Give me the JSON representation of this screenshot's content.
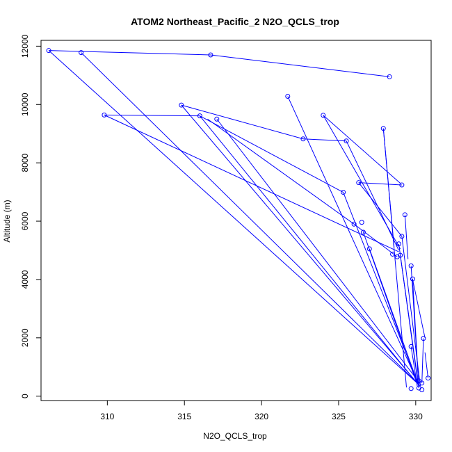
{
  "chart_data": {
    "type": "line",
    "title": "ATOM2 Northeast_Pacific_2 N2O_QCLS_trop",
    "xlabel": "N2O_QCLS_trop",
    "ylabel": "Altitude (m)",
    "xlim": [
      305.7,
      331.0
    ],
    "ylim": [
      -150,
      12200
    ],
    "x_ticks": [
      310,
      315,
      320,
      325,
      330
    ],
    "y_ticks": [
      0,
      2000,
      4000,
      6000,
      8000,
      10000,
      12000
    ],
    "grid": false,
    "line_color": "#0000ff",
    "marker": "open-circle",
    "points": [
      {
        "x": 306.2,
        "y": 11850
      },
      {
        "x": 308.3,
        "y": 11780
      },
      {
        "x": 316.7,
        "y": 11700
      },
      {
        "x": 328.3,
        "y": 10950
      },
      {
        "x": 321.7,
        "y": 10280
      },
      {
        "x": 314.8,
        "y": 9980
      },
      {
        "x": 324.0,
        "y": 9630
      },
      {
        "x": 309.8,
        "y": 9640
      },
      {
        "x": 316.0,
        "y": 9610
      },
      {
        "x": 317.1,
        "y": 9500
      },
      {
        "x": 327.9,
        "y": 9180
      },
      {
        "x": 322.7,
        "y": 8820
      },
      {
        "x": 325.5,
        "y": 8750
      },
      {
        "x": 326.3,
        "y": 7320
      },
      {
        "x": 329.1,
        "y": 7240
      },
      {
        "x": 325.3,
        "y": 6990
      },
      {
        "x": 329.3,
        "y": 6220
      },
      {
        "x": 326.5,
        "y": 5960
      },
      {
        "x": 326.0,
        "y": 5900
      },
      {
        "x": 326.6,
        "y": 5620
      },
      {
        "x": 329.1,
        "y": 5480
      },
      {
        "x": 328.9,
        "y": 5220
      },
      {
        "x": 327.0,
        "y": 5050
      },
      {
        "x": 328.5,
        "y": 4870
      },
      {
        "x": 328.8,
        "y": 4780
      },
      {
        "x": 329.0,
        "y": 4830
      },
      {
        "x": 329.7,
        "y": 4470
      },
      {
        "x": 329.8,
        "y": 4020
      },
      {
        "x": 329.7,
        "y": 1700
      },
      {
        "x": 330.5,
        "y": 1980
      },
      {
        "x": 330.8,
        "y": 620
      },
      {
        "x": 330.2,
        "y": 520
      },
      {
        "x": 330.4,
        "y": 450
      },
      {
        "x": 329.7,
        "y": 260
      },
      {
        "x": 330.2,
        "y": 280
      },
      {
        "x": 330.4,
        "y": 220
      }
    ],
    "segments": [
      [
        306.2,
        11850,
        316.7,
        11700
      ],
      [
        316.7,
        11700,
        328.3,
        10950
      ],
      [
        306.2,
        11850,
        330.3,
        350
      ],
      [
        308.3,
        11780,
        330.2,
        400
      ],
      [
        314.8,
        9980,
        322.7,
        8820
      ],
      [
        322.7,
        8820,
        325.5,
        8750
      ],
      [
        325.5,
        8750,
        328.9,
        5000
      ],
      [
        314.8,
        9980,
        330.1,
        450
      ],
      [
        309.8,
        9640,
        316.0,
        9610
      ],
      [
        316.0,
        9610,
        325.3,
        6990
      ],
      [
        309.8,
        9640,
        328.9,
        4950
      ],
      [
        316.0,
        9610,
        330.0,
        500
      ],
      [
        317.1,
        9500,
        330.3,
        420
      ],
      [
        316.5,
        9500,
        326.0,
        5900
      ],
      [
        321.7,
        10280,
        330.2,
        400
      ],
      [
        324.0,
        9630,
        329.0,
        7300
      ],
      [
        324.0,
        9630,
        329.0,
        5050
      ],
      [
        327.9,
        9180,
        329.4,
        300
      ],
      [
        327.9,
        9180,
        328.6,
        5100
      ],
      [
        325.3,
        6990,
        330.2,
        350
      ],
      [
        326.3,
        7320,
        329.1,
        7240
      ],
      [
        326.3,
        7320,
        329.1,
        5480
      ],
      [
        326.0,
        5900,
        328.8,
        4780
      ],
      [
        326.6,
        5620,
        330.1,
        400
      ],
      [
        327.0,
        5050,
        330.2,
        350
      ],
      [
        329.3,
        6220,
        329.5,
        4700
      ],
      [
        329.1,
        5480,
        330.3,
        350
      ],
      [
        328.9,
        5220,
        330.2,
        300
      ],
      [
        329.0,
        4830,
        330.1,
        600
      ],
      [
        329.7,
        4470,
        330.2,
        300
      ],
      [
        329.8,
        4020,
        330.2,
        280
      ],
      [
        329.7,
        1700,
        330.1,
        350
      ],
      [
        330.5,
        1980,
        330.4,
        450
      ],
      [
        330.8,
        620,
        330.6,
        1500
      ],
      [
        329.8,
        4000,
        330.6,
        2000
      ]
    ]
  }
}
